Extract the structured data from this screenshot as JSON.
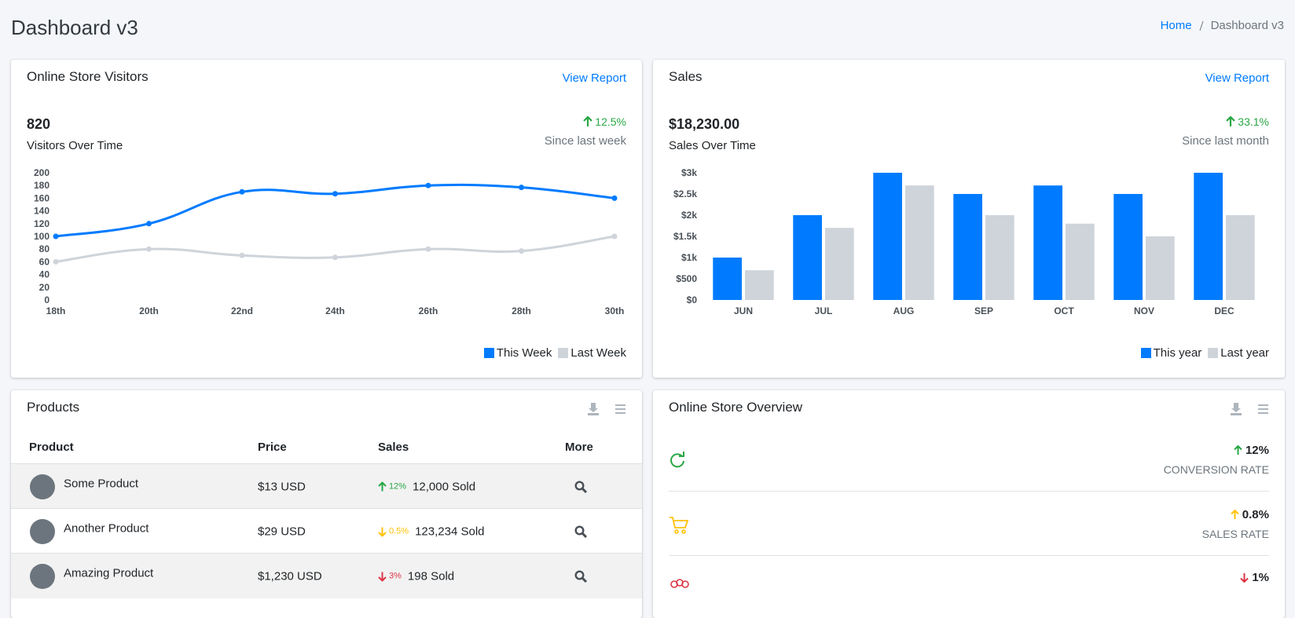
{
  "header": {
    "title": "Dashboard v3",
    "breadcrumb": [
      "Home",
      "Dashboard v3"
    ]
  },
  "visitors_card": {
    "title": "Online Store Visitors",
    "link": "View Report",
    "total": "820",
    "subtitle": "Visitors Over Time",
    "change": "12.5%",
    "period": "Since last week"
  },
  "sales_card": {
    "title": "Sales",
    "link": "View Report",
    "total": "$18,230.00",
    "subtitle": "Sales Over Time",
    "change": "33.1%",
    "period": "Since last month"
  },
  "chart_data": [
    {
      "type": "line",
      "categories": [
        "18th",
        "20th",
        "22nd",
        "24th",
        "26th",
        "28th",
        "30th"
      ],
      "series": [
        {
          "name": "This Week",
          "color": "#007bff",
          "values": [
            100,
            120,
            170,
            167,
            180,
            177,
            160
          ]
        },
        {
          "name": "Last Week",
          "color": "#ced4da",
          "values": [
            60,
            80,
            70,
            67,
            80,
            77,
            100
          ]
        }
      ],
      "ylim": [
        0,
        200
      ],
      "yticks": [
        0,
        20,
        40,
        60,
        80,
        100,
        120,
        140,
        160,
        180,
        200
      ],
      "legend": "bottom-right"
    },
    {
      "type": "bar",
      "categories": [
        "JUN",
        "JUL",
        "AUG",
        "SEP",
        "OCT",
        "NOV",
        "DEC"
      ],
      "series": [
        {
          "name": "This year",
          "color": "#007bff",
          "values": [
            1000,
            2000,
            3000,
            2500,
            2700,
            2500,
            3000
          ]
        },
        {
          "name": "Last year",
          "color": "#ced4da",
          "values": [
            700,
            1700,
            2700,
            2000,
            1800,
            1500,
            2000
          ]
        }
      ],
      "ylim": [
        0,
        3000
      ],
      "yticks": [
        {
          "value": 0,
          "label": "$0"
        },
        {
          "value": 500,
          "label": "$500"
        },
        {
          "value": 1000,
          "label": "$1k"
        },
        {
          "value": 1500,
          "label": "$1.5k"
        },
        {
          "value": 2000,
          "label": "$2k"
        },
        {
          "value": 2500,
          "label": "$2.5k"
        },
        {
          "value": 3000,
          "label": "$3k"
        }
      ],
      "legend": "bottom-right"
    }
  ],
  "products": {
    "title": "Products",
    "columns": [
      "Product",
      "Price",
      "Sales",
      "More"
    ],
    "rows": [
      {
        "name": "Some Product",
        "price": "$13 USD",
        "change": "12%",
        "sold": "12,000 Sold",
        "trend": "up",
        "color": "#28a745"
      },
      {
        "name": "Another Product",
        "price": "$29 USD",
        "change": "0.5%",
        "sold": "123,234 Sold",
        "trend": "down",
        "color": "#ffc107"
      },
      {
        "name": "Amazing Product",
        "price": "$1,230 USD",
        "change": "3%",
        "sold": "198 Sold",
        "trend": "down",
        "color": "#dc3545"
      }
    ]
  },
  "overview": {
    "title": "Online Store Overview",
    "rows": [
      {
        "value": "12%",
        "label": "CONVERSION RATE",
        "trend": "up",
        "color": "#28a745"
      },
      {
        "value": "0.8%",
        "label": "SALES RATE",
        "trend": "up",
        "color": "#ffc107"
      },
      {
        "value": "1%",
        "trend": "down",
        "color": "#dc3545"
      }
    ]
  }
}
